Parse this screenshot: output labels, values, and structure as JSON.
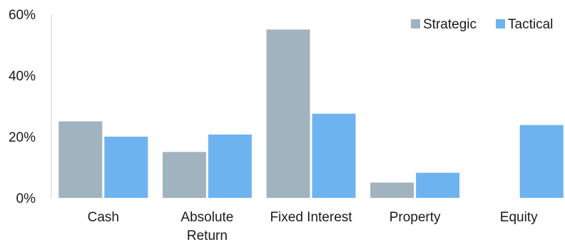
{
  "chart_data": {
    "type": "bar",
    "categories": [
      [
        "Cash"
      ],
      [
        "Absolute",
        "Return"
      ],
      [
        "Fixed Interest"
      ],
      [
        "Property"
      ],
      [
        "Equity"
      ]
    ],
    "series": [
      {
        "name": "Strategic",
        "values": [
          25,
          15,
          55,
          5,
          0
        ],
        "color": "#a0b3bf"
      },
      {
        "name": "Tactical",
        "values": [
          20,
          20.7,
          27.5,
          8.2,
          23.8
        ],
        "color": "#6db3f0"
      }
    ],
    "ylim": [
      0,
      60
    ],
    "yticks": [
      "0%",
      "20%",
      "40%",
      "60%"
    ],
    "ytick_values": [
      0,
      20,
      40,
      60
    ],
    "legend": "top-right",
    "axis_color": "#cccccc"
  }
}
